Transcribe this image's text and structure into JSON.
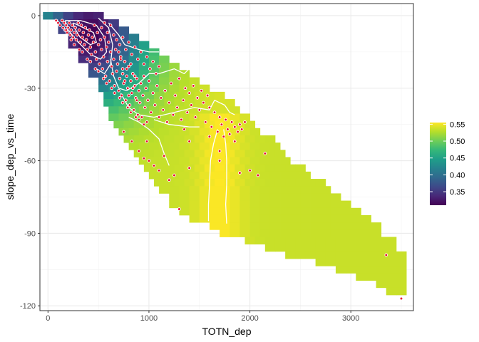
{
  "chart_data": {
    "type": "heatmap",
    "subtype": "raster-with-contours-and-points",
    "xlabel": "TOTN_dep",
    "ylabel": "slope_dep_vs_time",
    "xlim": [
      -80,
      3620
    ],
    "ylim": [
      -122,
      5
    ],
    "x_ticks": [
      0,
      1000,
      2000,
      3000
    ],
    "x_tick_labels": [
      "0",
      "1000",
      "2000",
      "3000"
    ],
    "y_ticks": [
      0,
      -30,
      -60,
      -90,
      -120
    ],
    "y_tick_labels": [
      "0",
      "-30",
      "-60",
      "-90",
      "-120"
    ],
    "grid": true,
    "colorscale": "viridis",
    "legend": {
      "position": "right",
      "range": [
        0.31,
        0.555
      ],
      "ticks": [
        0.35,
        0.4,
        0.45,
        0.5,
        0.55
      ],
      "tick_labels": [
        "0.35",
        "0.40",
        "0.45",
        "0.50",
        "0.55"
      ]
    },
    "raster": {
      "x_step": 100,
      "y_step": 3,
      "value_model": {
        "ridge_x": 1700,
        "low_center": [
          420,
          -8
        ],
        "low_value": 0.31,
        "plateau_value": 0.535,
        "peak_value": 0.555
      },
      "bands": [
        {
          "y": 0,
          "x_min": 0,
          "x_max": 500
        },
        {
          "y": -3,
          "x_min": 150,
          "x_max": 700
        },
        {
          "y": -6,
          "x_min": 150,
          "x_max": 800
        },
        {
          "y": -9,
          "x_min": 250,
          "x_max": 900
        },
        {
          "y": -12,
          "x_min": 250,
          "x_max": 1000
        },
        {
          "y": -15,
          "x_min": 350,
          "x_max": 1100
        },
        {
          "y": -18,
          "x_min": 350,
          "x_max": 1200
        },
        {
          "y": -21,
          "x_min": 450,
          "x_max": 1300
        },
        {
          "y": -24,
          "x_min": 450,
          "x_max": 1400
        },
        {
          "y": -27,
          "x_min": 550,
          "x_max": 1500
        },
        {
          "y": -30,
          "x_min": 550,
          "x_max": 1600
        },
        {
          "y": -33,
          "x_min": 600,
          "x_max": 1700
        },
        {
          "y": -36,
          "x_min": 600,
          "x_max": 1800
        },
        {
          "y": -39,
          "x_min": 650,
          "x_max": 1900
        },
        {
          "y": -42,
          "x_min": 650,
          "x_max": 2000
        },
        {
          "y": -45,
          "x_min": 700,
          "x_max": 2000
        },
        {
          "y": -48,
          "x_min": 750,
          "x_max": 2100
        },
        {
          "y": -51,
          "x_min": 800,
          "x_max": 2200
        },
        {
          "y": -54,
          "x_min": 850,
          "x_max": 2300
        },
        {
          "y": -57,
          "x_min": 900,
          "x_max": 2300
        },
        {
          "y": -60,
          "x_min": 950,
          "x_max": 2400
        },
        {
          "y": -63,
          "x_min": 1000,
          "x_max": 2500
        },
        {
          "y": -66,
          "x_min": 1050,
          "x_max": 2600
        },
        {
          "y": -69,
          "x_min": 1100,
          "x_max": 2700
        },
        {
          "y": -72,
          "x_min": 1150,
          "x_max": 2800
        },
        {
          "y": -75,
          "x_min": 1250,
          "x_max": 2900
        },
        {
          "y": -78,
          "x_min": 1250,
          "x_max": 3000
        },
        {
          "y": -81,
          "x_min": 1350,
          "x_max": 3100
        },
        {
          "y": -84,
          "x_min": 1450,
          "x_max": 3200
        },
        {
          "y": -87,
          "x_min": 1650,
          "x_max": 3300
        },
        {
          "y": -90,
          "x_min": 1750,
          "x_max": 3300
        },
        {
          "y": -93,
          "x_min": 2000,
          "x_max": 3400
        },
        {
          "y": -96,
          "x_min": 2200,
          "x_max": 3400
        },
        {
          "y": -99,
          "x_min": 2400,
          "x_max": 3500
        },
        {
          "y": -102,
          "x_min": 2700,
          "x_max": 3500
        },
        {
          "y": -105,
          "x_min": 2900,
          "x_max": 3500
        },
        {
          "y": -108,
          "x_min": 3100,
          "x_max": 3500
        },
        {
          "y": -111,
          "x_min": 3300,
          "x_max": 3500
        },
        {
          "y": -114,
          "x_min": 3400,
          "x_max": 3500
        }
      ]
    },
    "contours": [
      {
        "level": 0.35,
        "points": [
          [
            250,
            -3
          ],
          [
            350,
            -5
          ],
          [
            450,
            -7
          ],
          [
            480,
            -11
          ],
          [
            420,
            -12
          ],
          [
            320,
            -9
          ],
          [
            260,
            -5
          ],
          [
            250,
            -3
          ]
        ]
      },
      {
        "level": 0.38,
        "points": [
          [
            170,
            -2
          ],
          [
            320,
            -2
          ],
          [
            480,
            -4
          ],
          [
            560,
            -9
          ],
          [
            580,
            -15
          ],
          [
            520,
            -18
          ],
          [
            420,
            -16
          ],
          [
            300,
            -11
          ],
          [
            200,
            -6
          ],
          [
            170,
            -2
          ]
        ]
      },
      {
        "level": 0.42,
        "points": [
          [
            500,
            -1
          ],
          [
            600,
            -5
          ],
          [
            640,
            -12
          ],
          [
            620,
            -20
          ],
          [
            560,
            -24
          ],
          [
            480,
            -22
          ]
        ]
      },
      {
        "level": 0.45,
        "points": [
          [
            600,
            -3
          ],
          [
            700,
            -8
          ],
          [
            760,
            -12
          ],
          [
            900,
            -14
          ],
          [
            1000,
            -15
          ],
          [
            1100,
            -15
          ]
        ]
      },
      {
        "level": 0.46,
        "points": [
          [
            620,
            -18
          ],
          [
            650,
            -25
          ],
          [
            700,
            -30
          ],
          [
            780,
            -31
          ],
          [
            900,
            -28
          ],
          [
            1000,
            -24
          ],
          [
            1100,
            -24
          ],
          [
            1250,
            -22
          ],
          [
            1350,
            -24
          ],
          [
            1420,
            -21
          ]
        ]
      },
      {
        "level": 0.5,
        "points": [
          [
            720,
            -32
          ],
          [
            800,
            -38
          ],
          [
            900,
            -41
          ],
          [
            1050,
            -42
          ],
          [
            1250,
            -40
          ],
          [
            1450,
            -38
          ],
          [
            1600,
            -39
          ],
          [
            1650,
            -35
          ],
          [
            1750,
            -37
          ],
          [
            1800,
            -40
          ],
          [
            1850,
            -41
          ]
        ]
      },
      {
        "level": 0.52,
        "points": [
          [
            800,
            -42
          ],
          [
            900,
            -44
          ],
          [
            1000,
            -47
          ],
          [
            1100,
            -51
          ],
          [
            1150,
            -57
          ],
          [
            1200,
            -62
          ]
        ]
      },
      {
        "level": 0.525,
        "points": [
          [
            1050,
            -43
          ],
          [
            1200,
            -45
          ],
          [
            1400,
            -46
          ],
          [
            1500,
            -46
          ]
        ]
      },
      {
        "level": 0.54,
        "points": [
          [
            1680,
            -47
          ],
          [
            1640,
            -53
          ],
          [
            1610,
            -60
          ],
          [
            1600,
            -70
          ],
          [
            1590,
            -78
          ],
          [
            1590,
            -85
          ]
        ]
      },
      {
        "level": 0.54,
        "points": [
          [
            1740,
            -47
          ],
          [
            1760,
            -53
          ],
          [
            1770,
            -60
          ],
          [
            1770,
            -70
          ],
          [
            1760,
            -78
          ],
          [
            1770,
            -86
          ]
        ]
      }
    ],
    "points": [
      [
        80,
        -2
      ],
      [
        100,
        -3
      ],
      [
        120,
        -4
      ],
      [
        140,
        -2
      ],
      [
        150,
        -5
      ],
      [
        160,
        -3
      ],
      [
        170,
        -6
      ],
      [
        180,
        -4
      ],
      [
        190,
        -7
      ],
      [
        200,
        -5
      ],
      [
        210,
        -3
      ],
      [
        220,
        -8
      ],
      [
        230,
        -6
      ],
      [
        240,
        -4
      ],
      [
        250,
        -9
      ],
      [
        260,
        -7
      ],
      [
        270,
        -5
      ],
      [
        280,
        -10
      ],
      [
        290,
        -8
      ],
      [
        300,
        -3
      ],
      [
        310,
        -6
      ],
      [
        320,
        -11
      ],
      [
        330,
        -4
      ],
      [
        340,
        -9
      ],
      [
        350,
        -7
      ],
      [
        360,
        -12
      ],
      [
        370,
        -5
      ],
      [
        380,
        -10
      ],
      [
        390,
        -14
      ],
      [
        400,
        -8
      ],
      [
        410,
        -6
      ],
      [
        420,
        -13
      ],
      [
        430,
        -16
      ],
      [
        440,
        -9
      ],
      [
        450,
        -11
      ],
      [
        460,
        -4
      ],
      [
        470,
        -15
      ],
      [
        480,
        -18
      ],
      [
        490,
        -7
      ],
      [
        500,
        -12
      ],
      [
        510,
        -20
      ],
      [
        520,
        -10
      ],
      [
        530,
        -14
      ],
      [
        540,
        -22
      ],
      [
        550,
        -17
      ],
      [
        560,
        -9
      ],
      [
        570,
        -25
      ],
      [
        580,
        -13
      ],
      [
        590,
        -19
      ],
      [
        600,
        -11
      ],
      [
        610,
        -27
      ],
      [
        620,
        -15
      ],
      [
        630,
        -21
      ],
      [
        640,
        -24
      ],
      [
        650,
        -18
      ],
      [
        660,
        -29
      ],
      [
        670,
        -14
      ],
      [
        680,
        -23
      ],
      [
        690,
        -20
      ],
      [
        700,
        -31
      ],
      [
        710,
        -26
      ],
      [
        720,
        -17
      ],
      [
        730,
        -33
      ],
      [
        740,
        -22
      ],
      [
        750,
        -28
      ],
      [
        760,
        -19
      ],
      [
        770,
        -35
      ],
      [
        780,
        -25
      ],
      [
        790,
        -30
      ],
      [
        800,
        -21
      ],
      [
        810,
        -37
      ],
      [
        820,
        -27
      ],
      [
        830,
        -32
      ],
      [
        840,
        -24
      ],
      [
        850,
        -39
      ],
      [
        860,
        -29
      ],
      [
        870,
        -34
      ],
      [
        880,
        -26
      ],
      [
        890,
        -41
      ],
      [
        900,
        -31
      ],
      [
        910,
        -36
      ],
      [
        920,
        -28
      ],
      [
        930,
        -42
      ],
      [
        940,
        -33
      ],
      [
        950,
        -25
      ],
      [
        960,
        -38
      ],
      [
        970,
        -30
      ],
      [
        980,
        -44
      ],
      [
        990,
        -35
      ],
      [
        1000,
        -27
      ],
      [
        1020,
        -40
      ],
      [
        1040,
        -32
      ],
      [
        1060,
        -37
      ],
      [
        1080,
        -29
      ],
      [
        1100,
        -42
      ],
      [
        1120,
        -34
      ],
      [
        1140,
        -39
      ],
      [
        1160,
        -31
      ],
      [
        1180,
        -44
      ],
      [
        1200,
        -36
      ],
      [
        1220,
        -28
      ],
      [
        1240,
        -41
      ],
      [
        1260,
        -33
      ],
      [
        1280,
        -38
      ],
      [
        1300,
        -26
      ],
      [
        1320,
        -43
      ],
      [
        1340,
        -35
      ],
      [
        1360,
        -30
      ],
      [
        1380,
        -40
      ],
      [
        1400,
        -32
      ],
      [
        1420,
        -37
      ],
      [
        1440,
        -29
      ],
      [
        1460,
        -42
      ],
      [
        1480,
        -34
      ],
      [
        1500,
        -39
      ],
      [
        1520,
        -31
      ],
      [
        1540,
        -36
      ],
      [
        1560,
        -44
      ],
      [
        1580,
        -33
      ],
      [
        1600,
        -38
      ],
      [
        1620,
        -46
      ],
      [
        1650,
        -40
      ],
      [
        1680,
        -48
      ],
      [
        1700,
        -42
      ],
      [
        1720,
        -45
      ],
      [
        1740,
        -50
      ],
      [
        1760,
        -43
      ],
      [
        1780,
        -47
      ],
      [
        1800,
        -49
      ],
      [
        1820,
        -44
      ],
      [
        1850,
        -46
      ],
      [
        1880,
        -48
      ],
      [
        1900,
        -45
      ],
      [
        1920,
        -47
      ],
      [
        1950,
        -44
      ],
      [
        180,
        -6
      ],
      [
        260,
        -12
      ],
      [
        340,
        -15
      ],
      [
        420,
        -19
      ],
      [
        500,
        -23
      ],
      [
        580,
        -28
      ],
      [
        660,
        -32
      ],
      [
        740,
        -36
      ],
      [
        820,
        -40
      ],
      [
        900,
        -43
      ],
      [
        230,
        -10
      ],
      [
        310,
        -14
      ],
      [
        390,
        -18
      ],
      [
        470,
        -22
      ],
      [
        550,
        -26
      ],
      [
        630,
        -30
      ],
      [
        710,
        -34
      ],
      [
        790,
        -38
      ],
      [
        870,
        -42
      ],
      [
        950,
        -45
      ],
      [
        530,
        -5
      ],
      [
        560,
        -3
      ],
      [
        590,
        -7
      ],
      [
        620,
        -4
      ],
      [
        650,
        -8
      ],
      [
        680,
        -10
      ],
      [
        710,
        -12
      ],
      [
        740,
        -9
      ],
      [
        770,
        -14
      ],
      [
        800,
        -11
      ],
      [
        830,
        -16
      ],
      [
        860,
        -13
      ],
      [
        890,
        -18
      ],
      [
        920,
        -15
      ],
      [
        950,
        -20
      ],
      [
        980,
        -17
      ],
      [
        1010,
        -22
      ],
      [
        1040,
        -19
      ],
      [
        1070,
        -24
      ],
      [
        1100,
        -21
      ],
      [
        700,
        -15
      ],
      [
        720,
        -18
      ],
      [
        740,
        -24
      ],
      [
        760,
        -27
      ],
      [
        780,
        -22
      ],
      [
        800,
        -33
      ],
      [
        820,
        -20
      ],
      [
        840,
        -30
      ],
      [
        860,
        -25
      ],
      [
        880,
        -35
      ],
      [
        750,
        -48
      ],
      [
        830,
        -52
      ],
      [
        900,
        -56
      ],
      [
        950,
        -59
      ],
      [
        1000,
        -60
      ],
      [
        1050,
        -62
      ],
      [
        1100,
        -64
      ],
      [
        1200,
        -68
      ],
      [
        1300,
        -80
      ],
      [
        1400,
        -63
      ],
      [
        980,
        -52
      ],
      [
        1150,
        -58
      ],
      [
        1250,
        -66
      ],
      [
        1400,
        -52
      ],
      [
        1600,
        -50
      ],
      [
        1700,
        -56
      ],
      [
        1900,
        -65
      ],
      [
        2000,
        -64
      ],
      [
        2150,
        -57
      ],
      [
        1350,
        -47
      ],
      [
        3350,
        -99
      ],
      [
        3500,
        -117
      ],
      [
        1700,
        -60
      ],
      [
        1850,
        -52
      ],
      [
        2080,
        -66
      ]
    ]
  }
}
